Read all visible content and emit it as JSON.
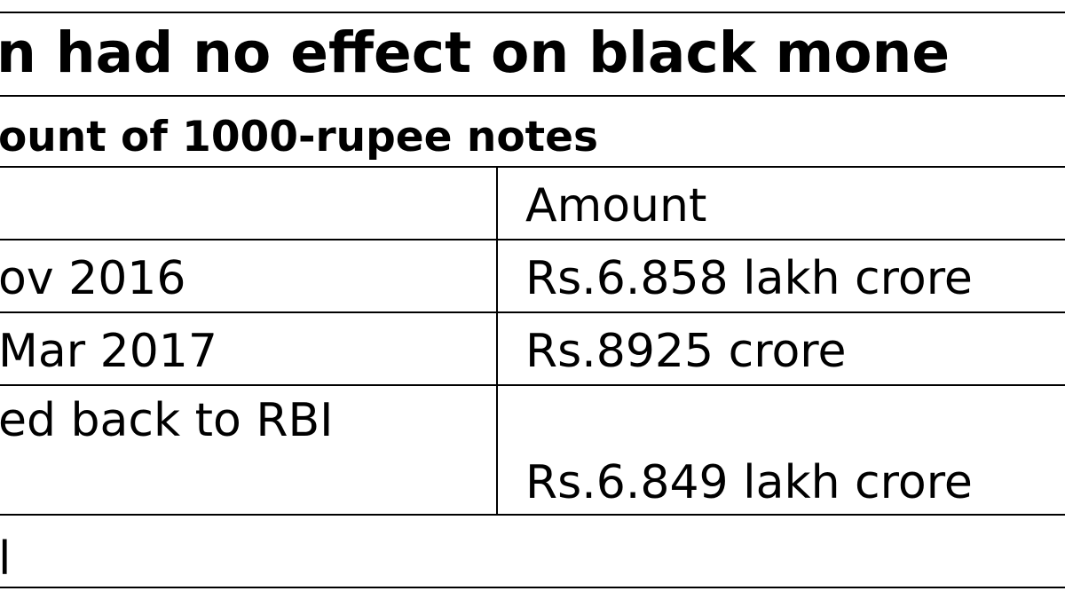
{
  "title": "n had no effect on black mone",
  "subtitle": "ount of 1000-rupee notes",
  "table": {
    "header": "Amount",
    "rows": [
      [
        "ov 2016",
        "Rs.6.858 lakh crore"
      ],
      [
        "Mar 2017",
        "Rs.8925 crore"
      ],
      [
        "ed back to RBI",
        "Rs.6.849 lakh crore"
      ],
      [
        "l"
      ]
    ]
  }
}
